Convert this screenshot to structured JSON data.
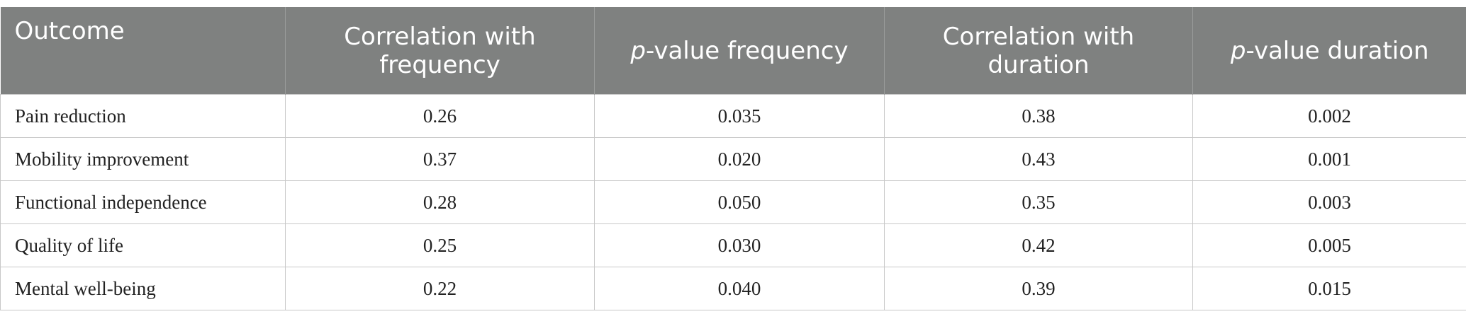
{
  "table": {
    "header": [
      "Outcome",
      "Correlation with frequency",
      "p-value frequency",
      "Correlation with duration",
      "p-value duration"
    ],
    "rows": [
      [
        "Pain reduction",
        "0.26",
        "0.035",
        "0.38",
        "0.002"
      ],
      [
        "Mobility improvement",
        "0.37",
        "0.020",
        "0.43",
        "0.001"
      ],
      [
        "Functional independence",
        "0.28",
        "0.050",
        "0.35",
        "0.003"
      ],
      [
        "Quality of life",
        "0.25",
        "0.030",
        "0.42",
        "0.005"
      ],
      [
        "Mental well-being",
        "0.22",
        "0.040",
        "0.39",
        "0.015"
      ]
    ]
  }
}
